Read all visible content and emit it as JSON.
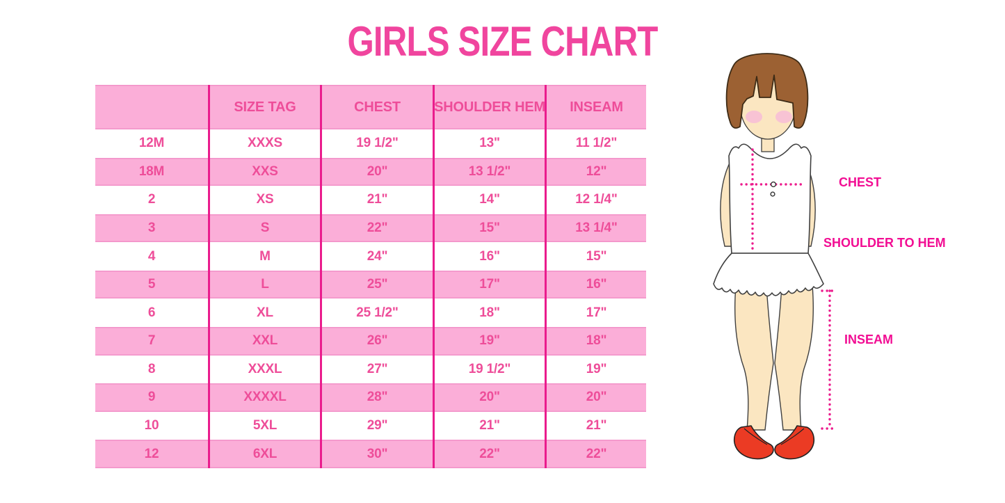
{
  "title": "GIRLS SIZE CHART",
  "colors": {
    "title_pink": "#F0459E",
    "row_pink": "#FBAED8",
    "row_edge_pink": "#F291C8",
    "divider_pink": "#EA1C8D",
    "text_pink": "#EE4D99",
    "label_magenta": "#F20D93",
    "dot_magenta": "#EC1C8D",
    "hair_brown": "#9C6133",
    "skin": "#FBE6C1",
    "blush": "#F7BFD6",
    "shoe_red": "#EB3B24"
  },
  "chart_data": {
    "type": "table",
    "title": "GIRLS SIZE CHART",
    "columns": [
      "",
      "SIZE TAG",
      "CHEST",
      "SHOULDER HEM",
      "INSEAM"
    ],
    "rows": [
      [
        "12M",
        "XXXS",
        "19 1/2\"",
        "13\"",
        "11 1/2\""
      ],
      [
        "18M",
        "XXS",
        "20\"",
        "13 1/2\"",
        "12\""
      ],
      [
        "2",
        "XS",
        "21\"",
        "14\"",
        "12 1/4\""
      ],
      [
        "3",
        "S",
        "22\"",
        "15\"",
        "13 1/4\""
      ],
      [
        "4",
        "M",
        "24\"",
        "16\"",
        "15\""
      ],
      [
        "5",
        "L",
        "25\"",
        "17\"",
        "16\""
      ],
      [
        "6",
        "XL",
        "25 1/2\"",
        "18\"",
        "17\""
      ],
      [
        "7",
        "XXL",
        "26\"",
        "19\"",
        "18\""
      ],
      [
        "8",
        "XXXL",
        "27\"",
        "19 1/2\"",
        "19\""
      ],
      [
        "9",
        "XXXXL",
        "28\"",
        "20\"",
        "20\""
      ],
      [
        "10",
        "5XL",
        "29\"",
        "21\"",
        "21\""
      ],
      [
        "12",
        "6XL",
        "30\"",
        "22\"",
        "22\""
      ]
    ],
    "layout": {
      "row_striping": "white and pink alternating, header pink",
      "grid": "vertical column dividers only"
    }
  },
  "diagram": {
    "labels": {
      "chest": "CHEST",
      "shoulder_to_hem": "SHOULDER TO HEM",
      "inseam": "INSEAM"
    }
  }
}
